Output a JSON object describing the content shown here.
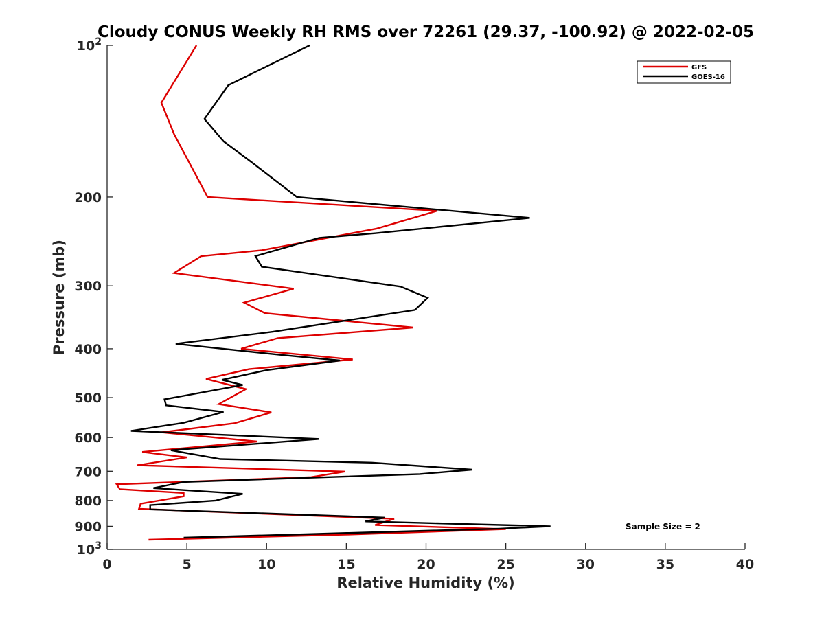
{
  "chart_data": {
    "type": "line",
    "title": "Cloudy CONUS Weekly RH RMS over 72261 (29.37, -100.92) @ 2022-02-05",
    "xlabel": "Relative Humidity (%)",
    "ylabel": "Pressure (mb)",
    "xlim": [
      0,
      40
    ],
    "ylim": [
      100,
      1000
    ],
    "y_scale": "log",
    "y_reversed": true,
    "x_ticks": [
      "0",
      "5",
      "10",
      "15",
      "20",
      "25",
      "30",
      "35",
      "40"
    ],
    "x_tick_values": [
      0,
      5,
      10,
      15,
      20,
      25,
      30,
      35,
      40
    ],
    "y_ticks": [
      {
        "value": 100,
        "base": "10",
        "exp": "2"
      },
      {
        "value": 200,
        "label": "200"
      },
      {
        "value": 300,
        "label": "300"
      },
      {
        "value": 400,
        "label": "400"
      },
      {
        "value": 500,
        "label": "500"
      },
      {
        "value": 600,
        "label": "600"
      },
      {
        "value": 700,
        "label": "700"
      },
      {
        "value": 800,
        "label": "800"
      },
      {
        "value": 900,
        "label": "900"
      },
      {
        "value": 1000,
        "base": "10",
        "exp": "3"
      }
    ],
    "grid": false,
    "legend_position": "top-right",
    "annotation": "Sample Size = 2",
    "series": [
      {
        "name": "GFS",
        "color": "#dd0000",
        "points": [
          [
            5.6,
            100
          ],
          [
            3.4,
            130
          ],
          [
            4.2,
            150
          ],
          [
            6.3,
            200
          ],
          [
            20.7,
            213
          ],
          [
            16.9,
            231
          ],
          [
            9.7,
            255
          ],
          [
            5.9,
            262
          ],
          [
            4.2,
            283
          ],
          [
            11.7,
            304
          ],
          [
            8.6,
            324
          ],
          [
            9.9,
            340
          ],
          [
            19.2,
            363
          ],
          [
            10.7,
            381
          ],
          [
            8.4,
            400
          ],
          [
            15.4,
            420
          ],
          [
            8.9,
            439
          ],
          [
            6.2,
            459
          ],
          [
            8.7,
            481
          ],
          [
            7.0,
            515
          ],
          [
            10.3,
            535
          ],
          [
            8.0,
            562
          ],
          [
            3.4,
            586
          ],
          [
            9.4,
            611
          ],
          [
            2.2,
            641
          ],
          [
            5.0,
            657
          ],
          [
            1.9,
            681
          ],
          [
            14.9,
            701
          ],
          [
            12.8,
            719
          ],
          [
            0.6,
            743
          ],
          [
            0.8,
            760
          ],
          [
            4.8,
            773
          ],
          [
            4.8,
            785
          ],
          [
            2.1,
            812
          ],
          [
            2.0,
            831
          ],
          [
            18.0,
            870
          ],
          [
            16.8,
            895
          ],
          [
            25.0,
            912
          ],
          [
            14.9,
            935
          ],
          [
            2.6,
            957
          ]
        ]
      },
      {
        "name": "GOES-16",
        "color": "#000000",
        "points": [
          [
            12.7,
            100
          ],
          [
            7.6,
            120
          ],
          [
            6.1,
            140
          ],
          [
            7.3,
            155
          ],
          [
            9.0,
            170
          ],
          [
            11.9,
            200
          ],
          [
            26.5,
            220
          ],
          [
            16.8,
            236
          ],
          [
            13.3,
            241
          ],
          [
            9.3,
            262
          ],
          [
            9.7,
            275
          ],
          [
            18.4,
            301
          ],
          [
            20.1,
            317
          ],
          [
            19.3,
            335
          ],
          [
            10.4,
            370
          ],
          [
            4.3,
            391
          ],
          [
            10.8,
            411
          ],
          [
            14.6,
            422
          ],
          [
            10.0,
            441
          ],
          [
            7.2,
            461
          ],
          [
            8.5,
            472
          ],
          [
            3.6,
            504
          ],
          [
            3.7,
            518
          ],
          [
            7.3,
            534
          ],
          [
            4.8,
            561
          ],
          [
            1.5,
            582
          ],
          [
            13.3,
            604
          ],
          [
            4.0,
            636
          ],
          [
            7.1,
            662
          ],
          [
            16.6,
            673
          ],
          [
            22.9,
            695
          ],
          [
            19.6,
            709
          ],
          [
            4.8,
            735
          ],
          [
            2.9,
            756
          ],
          [
            8.5,
            776
          ],
          [
            6.8,
            800
          ],
          [
            2.7,
            817
          ],
          [
            2.7,
            833
          ],
          [
            17.4,
            865
          ],
          [
            16.2,
            880
          ],
          [
            27.8,
            900
          ],
          [
            24.6,
            910
          ],
          [
            4.8,
            948
          ]
        ]
      }
    ]
  }
}
